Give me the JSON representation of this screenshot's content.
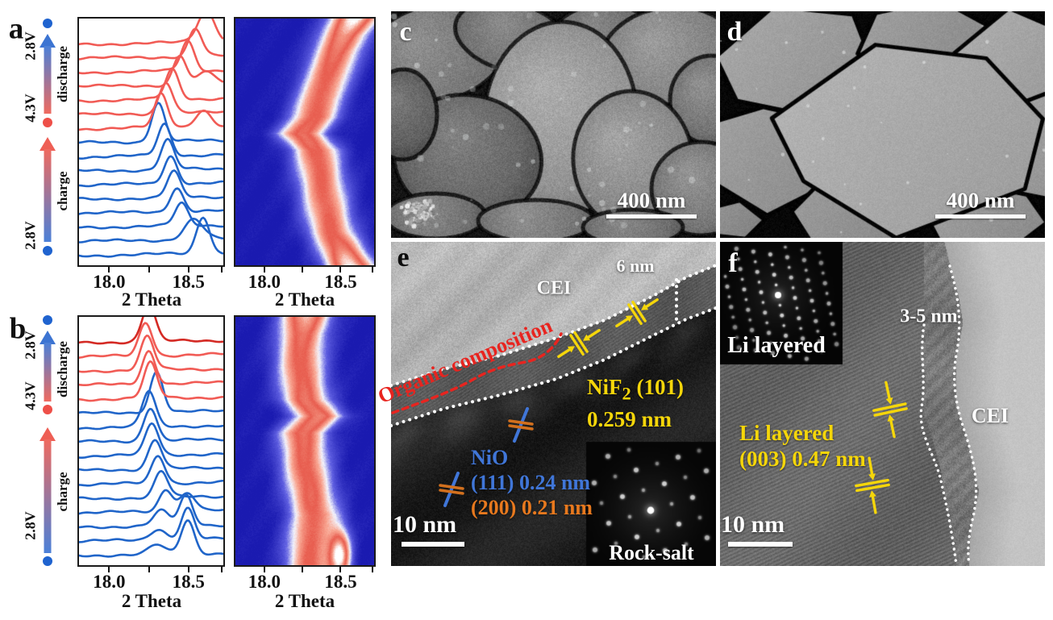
{
  "figure_type": "multi-panel cathode characterization figure (in situ XRD + SEM + HRTEM)",
  "panels": {
    "a": {
      "label": "a",
      "voltage_start": "2.8V",
      "voltage_mid": "4.3V",
      "voltage_end": "2.8V",
      "charge_label": "charge",
      "discharge_label": "discharge"
    },
    "b": {
      "label": "b",
      "voltage_start": "2.8V",
      "voltage_mid": "4.3V",
      "voltage_end": "2.8V",
      "charge_label": "charge",
      "discharge_label": "discharge"
    },
    "c": {
      "label": "c",
      "scale_bar": "400 nm"
    },
    "d": {
      "label": "d",
      "scale_bar": "400 nm"
    },
    "e": {
      "label": "e",
      "cei_label": "CEI",
      "cei_thickness": "6 nm",
      "organic_label": "Organic composition",
      "nif2_formula": "NiF",
      "nif2_subscript": "2",
      "nif2_plane": " (101)",
      "nif2_spacing": "0.259 nm",
      "nio_label": "NiO",
      "nio_111": "(111) 0.24 nm",
      "nio_200": "(200) 0.21 nm",
      "scale_bar": "10 nm",
      "saed_label": "Rock-salt"
    },
    "f": {
      "label": "f",
      "saed_label": "Li layered",
      "cei_thickness": "3-5 nm",
      "cei_label": "CEI",
      "phase_label": "Li layered",
      "phase_spacing": "(003) 0.47 nm",
      "scale_bar": "10 nm"
    }
  },
  "colors": {
    "charge_trace": "#2065c9",
    "discharge_trace": "#f15b55",
    "final_discharge_trace": "#d42a24",
    "annotation_yellow": "#f5d60a",
    "annotation_orange": "#e8791e",
    "annotation_blue": "#4076d8",
    "annotation_red": "#e8241f",
    "heatmap_low": "#1a1ab0",
    "heatmap_high": "#e85c4e"
  },
  "chart_data": [
    {
      "panel": "a",
      "type": "line",
      "description": "in situ XRD (003) peak evolution, scans stacked bottom (2.8V start of charge) to top (2.8V end of discharge); blue = charge, red = discharge",
      "x": {
        "label": "2 Theta",
        "range": [
          17.8,
          18.73
        ],
        "ticks": [
          18.0,
          18.5
        ],
        "tick_labels": [
          "18.0",
          "18.5"
        ],
        "minor_ticks": [
          18.25,
          18.71
        ]
      },
      "series": [
        {
          "peak": 18.6,
          "amp": 1.0,
          "color": "#2065c9",
          "phase": "charge"
        },
        {
          "peak": 18.54,
          "amp": 0.55,
          "width": 0.06,
          "color": "#2065c9",
          "phase": "charge"
        },
        {
          "peak": 18.46,
          "amp": 0.6,
          "color": "#2065c9",
          "phase": "charge"
        },
        {
          "peak": 18.43,
          "amp": 0.65,
          "color": "#2065c9",
          "phase": "charge"
        },
        {
          "peak": 18.41,
          "amp": 0.7,
          "color": "#2065c9",
          "phase": "charge"
        },
        {
          "peak": 18.39,
          "amp": 0.75,
          "color": "#2065c9",
          "phase": "charge"
        },
        {
          "peak": 18.37,
          "amp": 0.8,
          "color": "#2065c9",
          "phase": "charge"
        },
        {
          "peak": 18.35,
          "amp": 0.85,
          "color": "#2065c9",
          "phase": "charge"
        },
        {
          "peak": 18.31,
          "amp": 1.05,
          "color": "#2065c9",
          "phase": "charge"
        },
        {
          "peak": 18.33,
          "amp": 0.9,
          "peak2": 18.6,
          "amp2": 0.45,
          "color": "#f15b55",
          "phase": "discharge"
        },
        {
          "peak": 18.36,
          "amp": 0.85,
          "color": "#f15b55",
          "phase": "discharge"
        },
        {
          "peak": 18.4,
          "amp": 0.8,
          "color": "#f15b55",
          "phase": "discharge"
        },
        {
          "peak": 18.45,
          "amp": 0.8,
          "peak2": 18.62,
          "amp2": 0.35,
          "color": "#f15b55",
          "phase": "discharge"
        },
        {
          "peak": 18.5,
          "amp": 0.8,
          "color": "#f15b55",
          "phase": "discharge"
        },
        {
          "peak": 18.55,
          "amp": 0.75,
          "color": "#f15b55",
          "phase": "discharge"
        },
        {
          "peak": 18.62,
          "amp": 0.85,
          "width": 0.055,
          "color": "#f15b55",
          "phase": "discharge"
        }
      ]
    },
    {
      "panel": "a",
      "type": "heatmap",
      "description": "contour map of the same (003) reflection; red/white = high intensity, blue = low",
      "x": {
        "label": "2 Theta",
        "range": [
          17.8,
          18.73
        ],
        "ticks": [
          18.0,
          18.5
        ],
        "tick_labels": [
          "18.0",
          "18.5"
        ],
        "minor_ticks": [
          18.25,
          18.71
        ]
      },
      "band_centers_bottom_to_top": [
        18.57,
        18.51,
        18.45,
        18.42,
        18.4,
        18.38,
        18.36,
        18.34,
        18.24,
        18.33,
        18.36,
        18.4,
        18.44,
        18.48,
        18.53,
        18.6
      ],
      "band_intensity_bottom_to_top": [
        1.3,
        1.05,
        0.92,
        0.9,
        0.9,
        0.9,
        0.92,
        0.95,
        1.0,
        0.95,
        0.92,
        0.92,
        0.95,
        1.0,
        1.1,
        1.35
      ],
      "sigma_2theta": 0.11,
      "extra_spots": []
    },
    {
      "panel": "b",
      "type": "line",
      "description": "in situ XRD (003) peak evolution for modified sample; blue = charge, red = discharge, darkest red = final scan",
      "x": {
        "label": "2 Theta",
        "range": [
          17.8,
          18.73
        ],
        "ticks": [
          18.0,
          18.5
        ],
        "tick_labels": [
          "18.0",
          "18.5"
        ],
        "minor_ticks": [
          18.25,
          18.71
        ]
      },
      "series": [
        {
          "peak": 18.5,
          "amp": 0.9,
          "peak2": 18.3,
          "amp2": 0.25,
          "color": "#2065c9",
          "phase": "charge"
        },
        {
          "peak": 18.5,
          "amp": 0.85,
          "peak2": 18.31,
          "amp2": 0.3,
          "color": "#2065c9",
          "phase": "charge"
        },
        {
          "peak": 18.49,
          "amp": 0.8,
          "peak2": 18.33,
          "amp2": 0.4,
          "color": "#2065c9",
          "phase": "charge"
        },
        {
          "peak": 18.36,
          "amp": 0.6,
          "peak2": 18.5,
          "amp2": 0.5,
          "color": "#2065c9",
          "phase": "charge"
        },
        {
          "peak": 18.33,
          "amp": 0.7,
          "color": "#2065c9",
          "phase": "charge"
        },
        {
          "peak": 18.31,
          "amp": 0.75,
          "color": "#2065c9",
          "phase": "charge"
        },
        {
          "peak": 18.29,
          "amp": 0.8,
          "color": "#2065c9",
          "phase": "charge"
        },
        {
          "peak": 18.27,
          "amp": 0.85,
          "color": "#2065c9",
          "phase": "charge"
        },
        {
          "peak": 18.26,
          "amp": 0.9,
          "color": "#2065c9",
          "phase": "charge"
        },
        {
          "peak": 18.25,
          "amp": 0.95,
          "color": "#2065c9",
          "phase": "charge"
        },
        {
          "peak": 18.3,
          "amp": 1.1,
          "color": "#2065c9",
          "phase": "charge"
        },
        {
          "peak": 18.26,
          "amp": 0.95,
          "color": "#f15b55",
          "phase": "discharge"
        },
        {
          "peak": 18.25,
          "amp": 0.9,
          "color": "#f15b55",
          "phase": "discharge"
        },
        {
          "peak": 18.24,
          "amp": 0.9,
          "color": "#f15b55",
          "phase": "discharge"
        },
        {
          "peak": 18.23,
          "amp": 0.9,
          "color": "#f15b55",
          "phase": "discharge"
        },
        {
          "peak": 18.25,
          "amp": 1.0,
          "color": "#d42a24",
          "phase": "discharge"
        }
      ]
    },
    {
      "panel": "b",
      "type": "heatmap",
      "description": "contour map for panel b; narrow band near 18.25 with small mid kink and a bottom spot near 18.5",
      "x": {
        "label": "2 Theta",
        "range": [
          17.8,
          18.73
        ],
        "ticks": [
          18.0,
          18.5
        ],
        "tick_labels": [
          "18.0",
          "18.5"
        ],
        "minor_ticks": [
          18.25,
          18.71
        ]
      },
      "band_centers_bottom_to_top": [
        18.3,
        18.3,
        18.31,
        18.33,
        18.31,
        18.29,
        18.27,
        18.26,
        18.25,
        18.36,
        18.27,
        18.25,
        18.24,
        18.24,
        18.25,
        18.27
      ],
      "band_intensity_bottom_to_top": [
        0.92,
        0.9,
        0.9,
        0.92,
        0.95,
        0.95,
        0.95,
        0.95,
        1.0,
        1.05,
        1.0,
        0.95,
        0.95,
        0.95,
        1.0,
        1.2
      ],
      "sigma_2theta": 0.11,
      "extra_spots": [
        {
          "x": 18.5,
          "t": 0.04,
          "strength": 1.25
        }
      ]
    }
  ]
}
